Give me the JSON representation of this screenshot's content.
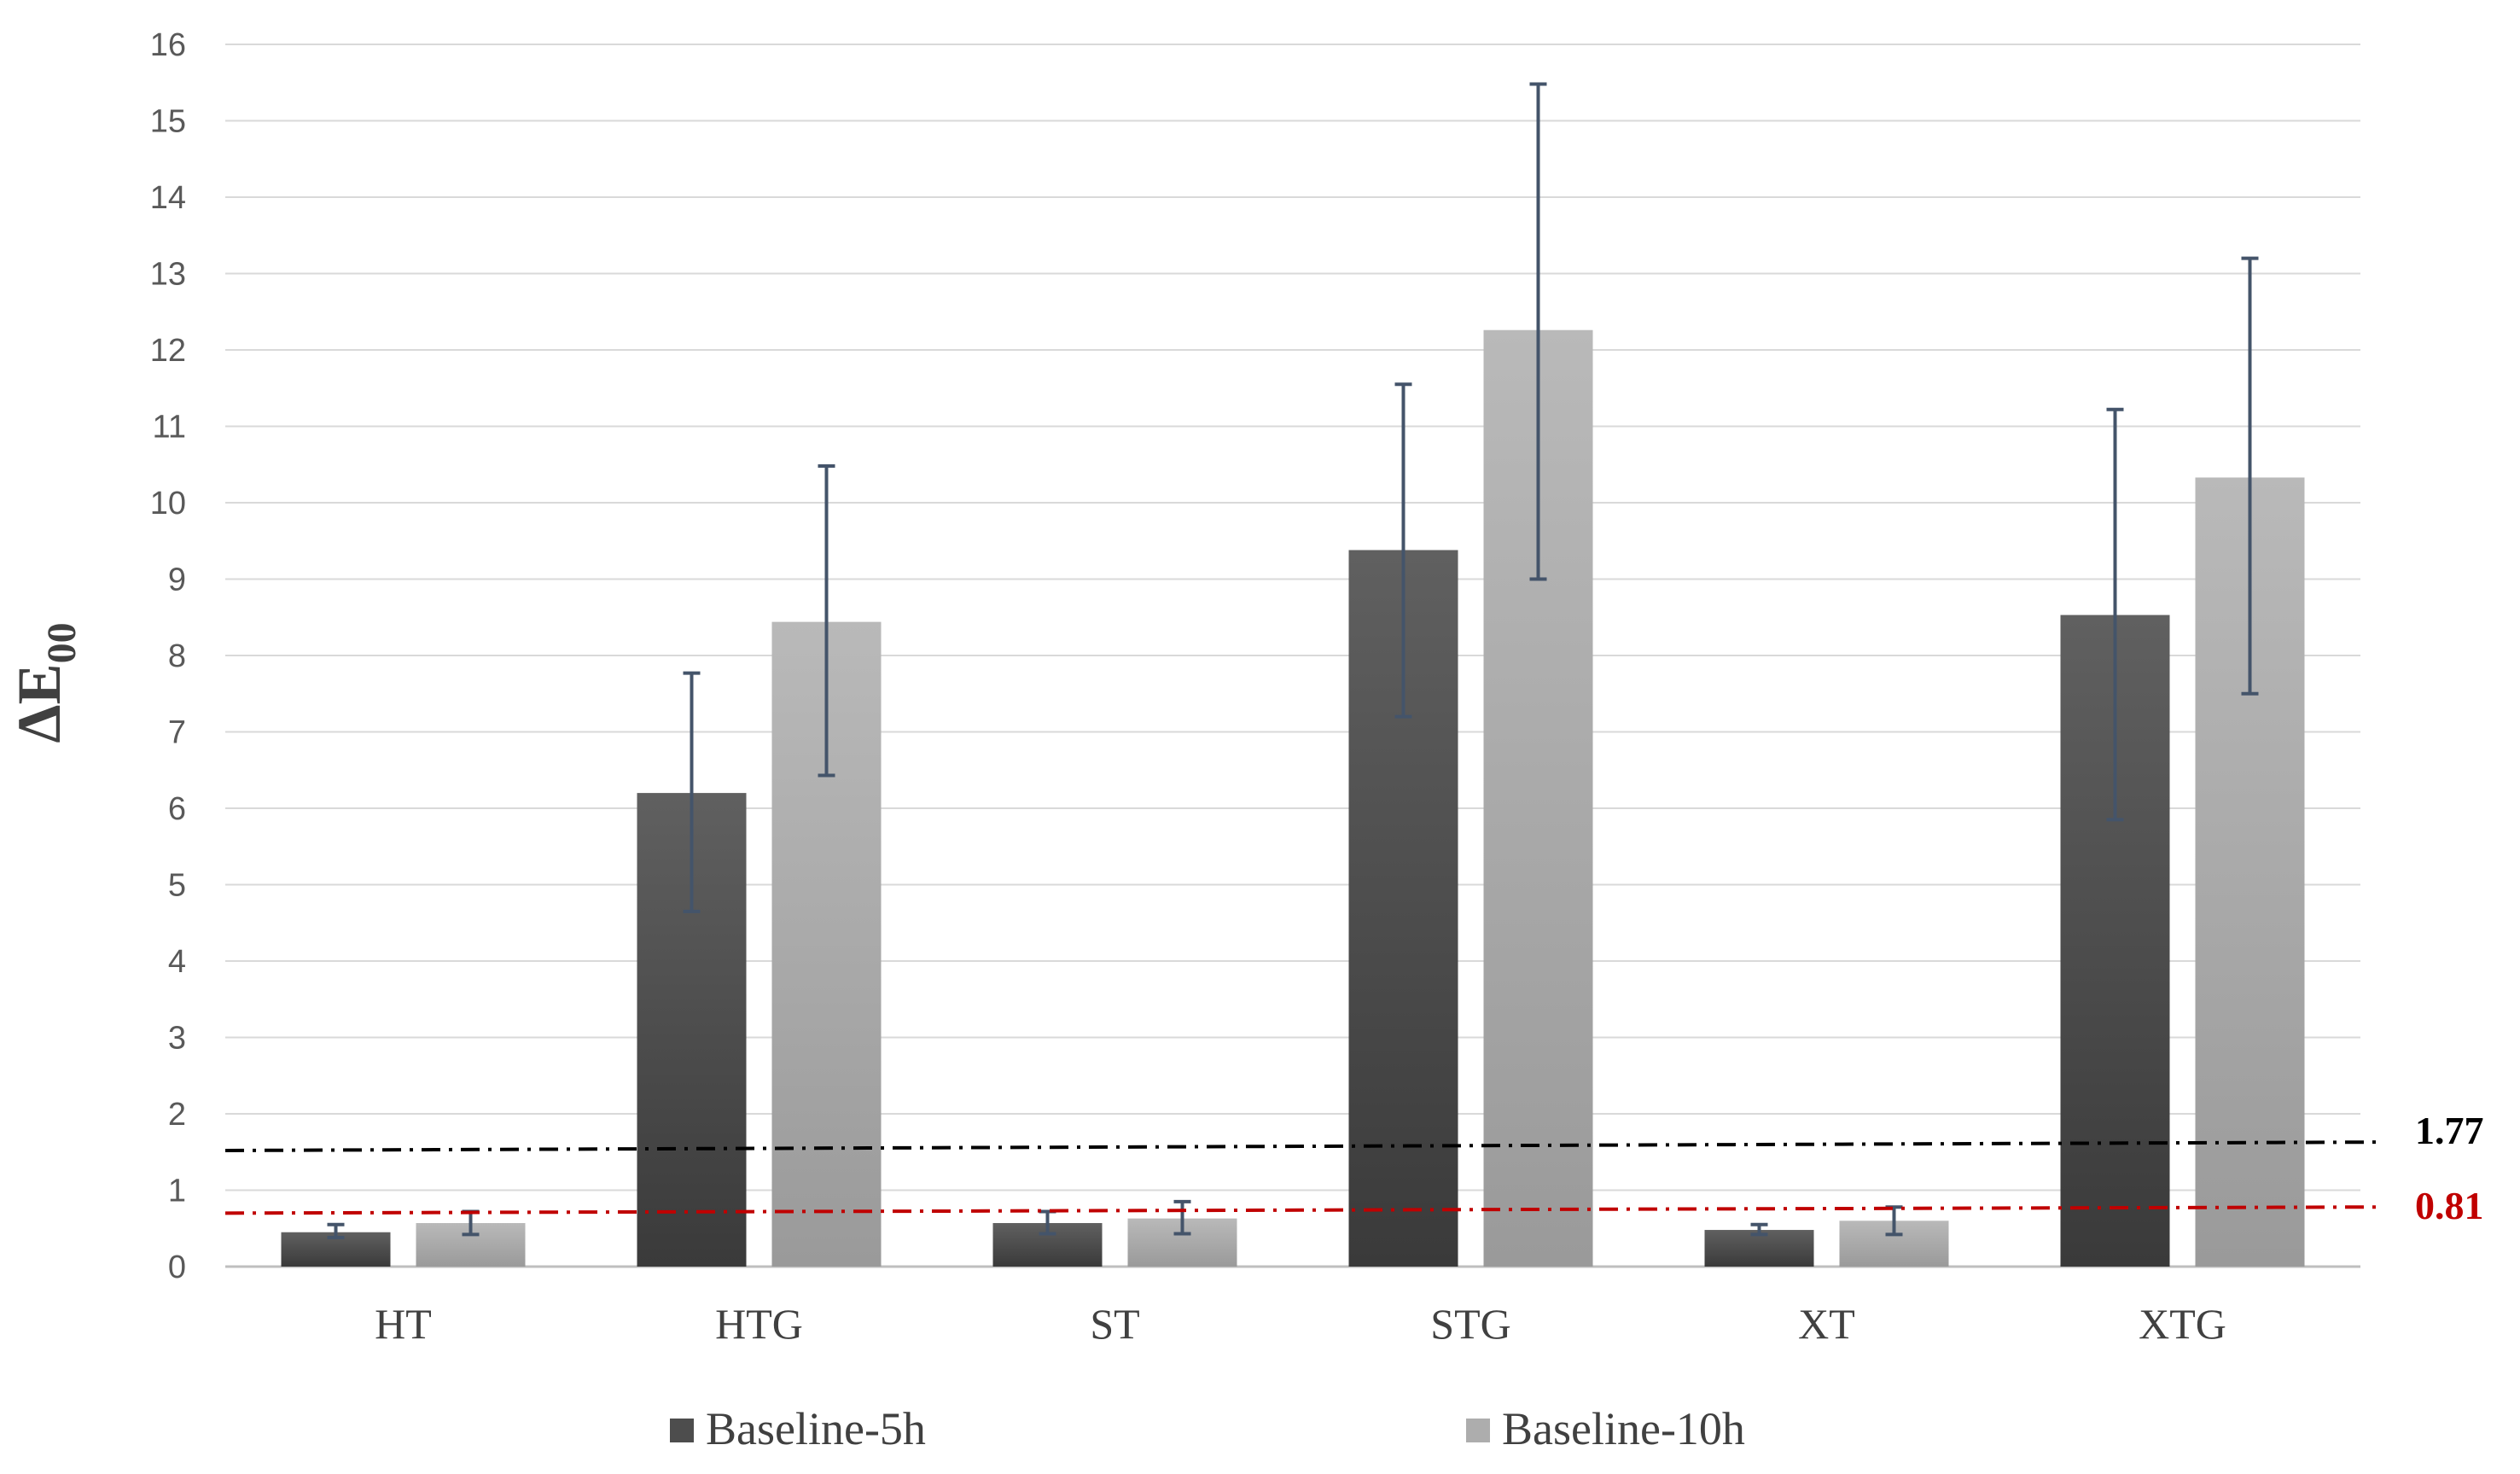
{
  "chart_data": {
    "type": "bar",
    "xlabel": "",
    "ylabel": "ΔE",
    "ylabel_subscript": "00",
    "ylim": [
      0,
      16
    ],
    "yticks": [
      0,
      1,
      2,
      3,
      4,
      5,
      6,
      7,
      8,
      9,
      10,
      11,
      12,
      13,
      14,
      15,
      16
    ],
    "grid": true,
    "legend_position": "bottom",
    "categories": [
      "HT",
      "HTG",
      "ST",
      "STG",
      "XT",
      "XTG"
    ],
    "series": [
      {
        "name": "Baseline-5h",
        "color": "#4d4d4d",
        "values": [
          0.45,
          6.2,
          0.57,
          9.38,
          0.48,
          8.53
        ],
        "error_low": [
          0.38,
          4.65,
          0.43,
          7.2,
          0.42,
          5.85
        ],
        "error_high": [
          0.55,
          7.77,
          0.72,
          11.55,
          0.55,
          11.22
        ]
      },
      {
        "name": "Baseline-10h",
        "color": "#adadad",
        "values": [
          0.57,
          8.44,
          0.63,
          12.26,
          0.6,
          10.33
        ],
        "error_low": [
          0.42,
          6.43,
          0.43,
          9.0,
          0.42,
          7.5
        ],
        "error_high": [
          0.72,
          10.48,
          0.85,
          15.48,
          0.78,
          13.2
        ]
      }
    ],
    "error_bar_color": "#44546a",
    "reference_lines": [
      {
        "label": "1.77",
        "start": 1.52,
        "end": 1.63,
        "color": "#000000",
        "style": "dash-dot"
      },
      {
        "label": "0.81",
        "start": 0.7,
        "end": 0.78,
        "color": "#c00000",
        "style": "dash-dot"
      }
    ]
  }
}
